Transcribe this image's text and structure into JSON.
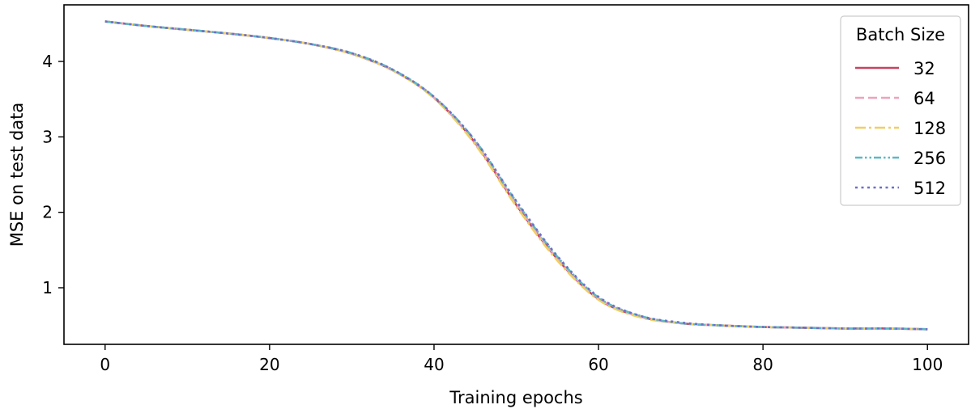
{
  "chart_data": {
    "type": "line",
    "title": "",
    "xlabel": "Training epochs",
    "ylabel": "MSE on test data",
    "xlim": [
      -5,
      105
    ],
    "ylim": [
      0.25,
      4.75
    ],
    "xticks": [
      0,
      20,
      40,
      60,
      80,
      100
    ],
    "xtick_labels": [
      "0",
      "20",
      "40",
      "60",
      "80",
      "100"
    ],
    "yticks": [
      1,
      2,
      3,
      4
    ],
    "ytick_labels": [
      "1",
      "2",
      "3",
      "4"
    ],
    "grid": false,
    "legend": {
      "title": "Batch Size",
      "placement": "top-right"
    },
    "x": [
      0,
      5,
      10,
      15,
      20,
      25,
      30,
      35,
      40,
      45,
      50,
      55,
      60,
      65,
      70,
      75,
      80,
      85,
      90,
      95,
      100
    ],
    "series": [
      {
        "name": "32",
        "color": "#c8435f",
        "dash": "solid",
        "values": [
          4.53,
          4.47,
          4.42,
          4.37,
          4.31,
          4.23,
          4.1,
          3.88,
          3.52,
          2.92,
          2.1,
          1.38,
          0.85,
          0.62,
          0.53,
          0.5,
          0.48,
          0.47,
          0.46,
          0.46,
          0.45
        ]
      },
      {
        "name": "64",
        "color": "#eea3bd",
        "dash": "dashed",
        "values": [
          4.53,
          4.47,
          4.42,
          4.37,
          4.31,
          4.23,
          4.1,
          3.88,
          3.52,
          2.93,
          2.12,
          1.39,
          0.86,
          0.62,
          0.53,
          0.5,
          0.48,
          0.47,
          0.46,
          0.46,
          0.45
        ]
      },
      {
        "name": "128",
        "color": "#f1ce63",
        "dash": "dashdot",
        "values": [
          4.53,
          4.47,
          4.42,
          4.37,
          4.31,
          4.23,
          4.1,
          3.88,
          3.51,
          2.9,
          2.08,
          1.36,
          0.84,
          0.61,
          0.53,
          0.5,
          0.48,
          0.47,
          0.46,
          0.46,
          0.45
        ]
      },
      {
        "name": "256",
        "color": "#5eb7c4",
        "dash": "dashdotdot",
        "values": [
          4.53,
          4.47,
          4.42,
          4.37,
          4.31,
          4.23,
          4.11,
          3.89,
          3.53,
          2.95,
          2.14,
          1.41,
          0.87,
          0.63,
          0.53,
          0.5,
          0.48,
          0.47,
          0.46,
          0.46,
          0.45
        ]
      },
      {
        "name": "512",
        "color": "#6c6fc8",
        "dash": "dotted",
        "values": [
          4.53,
          4.47,
          4.42,
          4.37,
          4.31,
          4.23,
          4.11,
          3.89,
          3.53,
          2.95,
          2.15,
          1.42,
          0.88,
          0.63,
          0.54,
          0.5,
          0.48,
          0.47,
          0.46,
          0.46,
          0.45
        ]
      }
    ]
  }
}
